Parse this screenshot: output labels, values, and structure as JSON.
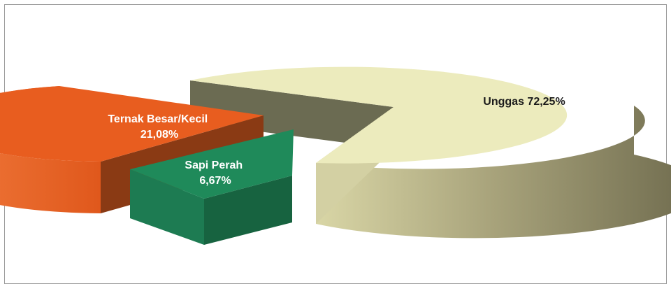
{
  "chart_data": {
    "type": "pie",
    "style": "3d-exploded",
    "title": "",
    "legend": "none",
    "slices": [
      {
        "name": "Unggas",
        "value": 72.25,
        "label": "Unggas 72,25%",
        "label_lines": [
          "Unggas 72,25%"
        ],
        "color": "#ecebbd",
        "label_color": "#1a1a1a"
      },
      {
        "name": "Ternak Besar/Kecil",
        "value": 21.08,
        "label": "Ternak Besar/Kecil 21,08%",
        "label_lines": [
          "Ternak Besar/Kecil",
          "21,08%"
        ],
        "color": "#ef6424",
        "label_color": "#ffffff"
      },
      {
        "name": "Sapi Perah",
        "value": 6.67,
        "label": "Sapi Perah 6,67%",
        "label_lines": [
          "Sapi Perah",
          "6,67%"
        ],
        "color": "#1f8a5a",
        "label_color": "#ffffff"
      }
    ]
  }
}
